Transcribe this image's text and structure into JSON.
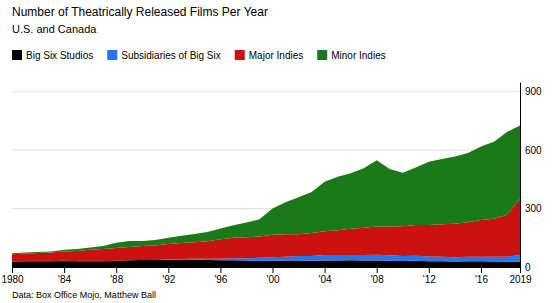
{
  "chart_data": {
    "type": "area",
    "stacked": true,
    "title": "Number of Theatrically Released Films Per Year",
    "subtitle": "U.S. and Canada",
    "source": "Data: Box Office Mojo, Matthew Ball",
    "x": [
      1980,
      1981,
      1982,
      1983,
      1984,
      1985,
      1986,
      1987,
      1988,
      1989,
      1990,
      1991,
      1992,
      1993,
      1994,
      1995,
      1996,
      1997,
      1998,
      1999,
      2000,
      2001,
      2002,
      2003,
      2004,
      2005,
      2006,
      2007,
      2008,
      2009,
      2010,
      2011,
      2012,
      2013,
      2014,
      2015,
      2016,
      2017,
      2018,
      2019
    ],
    "series": [
      {
        "name": "Big Six Studios",
        "color": "#000000",
        "values": [
          28,
          29,
          30,
          30,
          32,
          30,
          30,
          30,
          32,
          35,
          36,
          36,
          36,
          38,
          38,
          36,
          35,
          35,
          33,
          32,
          32,
          33,
          34,
          32,
          33,
          33,
          35,
          34,
          33,
          32,
          31,
          32,
          30,
          29,
          28,
          30,
          29,
          28,
          27,
          27
        ]
      },
      {
        "name": "Subsidiaries of Big Six",
        "color": "#2277ee",
        "values": [
          0,
          0,
          0,
          0,
          0,
          0,
          0,
          0,
          0,
          0,
          0,
          0,
          2,
          3,
          4,
          6,
          8,
          10,
          12,
          15,
          18,
          20,
          22,
          25,
          28,
          28,
          26,
          28,
          30,
          28,
          26,
          26,
          24,
          23,
          22,
          22,
          24,
          25,
          26,
          35
        ]
      },
      {
        "name": "Major Indies",
        "color": "#cc1111",
        "values": [
          38,
          40,
          42,
          44,
          48,
          52,
          58,
          62,
          65,
          68,
          72,
          75,
          80,
          82,
          85,
          90,
          100,
          105,
          108,
          110,
          115,
          115,
          112,
          118,
          122,
          128,
          135,
          140,
          145,
          148,
          152,
          158,
          162,
          168,
          172,
          178,
          188,
          195,
          215,
          290
        ]
      },
      {
        "name": "Minor Indies",
        "color": "#1a7a1a",
        "values": [
          4,
          5,
          5,
          6,
          8,
          10,
          12,
          16,
          28,
          30,
          25,
          28,
          32,
          38,
          42,
          48,
          55,
          65,
          75,
          88,
          135,
          165,
          190,
          210,
          255,
          275,
          285,
          305,
          340,
          295,
          275,
          295,
          325,
          335,
          345,
          355,
          378,
          395,
          425,
          375
        ]
      }
    ],
    "xlim": [
      1980,
      2019
    ],
    "xticks": [
      1980,
      {
        "value": 1984,
        "label": "'84"
      },
      {
        "value": 1988,
        "label": "'88"
      },
      {
        "value": 1992,
        "label": "'92"
      },
      {
        "value": 1996,
        "label": "'96"
      },
      {
        "value": 2000,
        "label": "'00"
      },
      {
        "value": 2004,
        "label": "'04"
      },
      {
        "value": 2008,
        "label": "'08"
      },
      {
        "value": 2012,
        "label": "'12"
      },
      {
        "value": 2016,
        "label": "'16"
      },
      2019
    ],
    "ylim": [
      0,
      950
    ],
    "yticks": [
      0,
      300,
      600,
      900
    ],
    "grid": true,
    "legend": "top"
  }
}
